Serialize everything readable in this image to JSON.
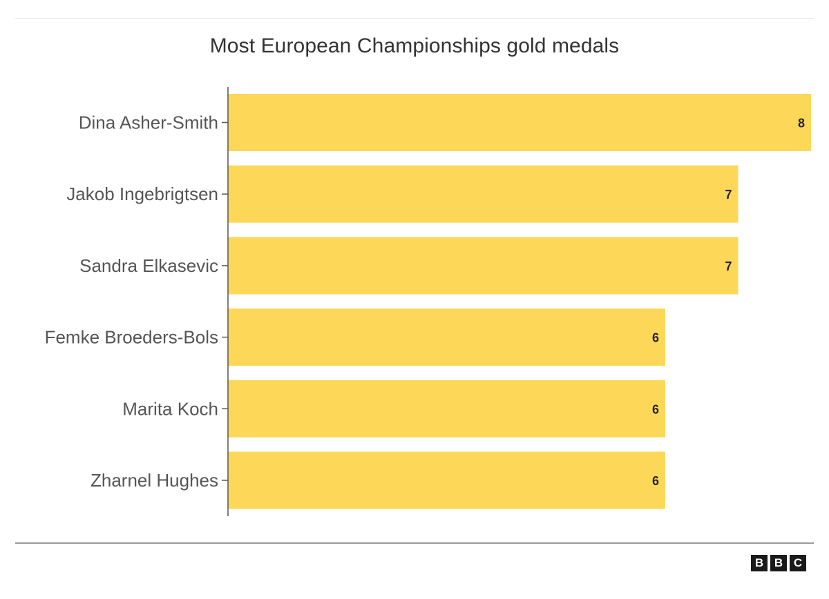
{
  "chart_data": {
    "type": "bar",
    "orientation": "horizontal",
    "title": "Most European Championships gold medals",
    "categories": [
      "Dina Asher-Smith",
      "Jakob Ingebrigtsen",
      "Sandra Elkasevic",
      "Femke Broeders-Bols",
      "Marita Koch",
      "Zharnel Hughes"
    ],
    "values": [
      8,
      7,
      7,
      6,
      6,
      6
    ],
    "data_labels": [
      "8",
      "7",
      "7",
      "6",
      "6",
      "6"
    ],
    "xlim": [
      0,
      8
    ],
    "bar_color": "#fdd858",
    "grid": false,
    "legend": "none"
  },
  "footer": {
    "logo": [
      "B",
      "B",
      "C"
    ]
  }
}
